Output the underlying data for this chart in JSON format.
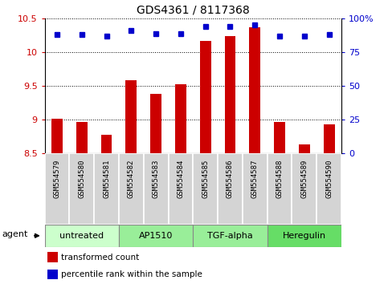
{
  "title": "GDS4361 / 8117368",
  "samples": [
    "GSM554579",
    "GSM554580",
    "GSM554581",
    "GSM554582",
    "GSM554583",
    "GSM554584",
    "GSM554585",
    "GSM554586",
    "GSM554587",
    "GSM554588",
    "GSM554589",
    "GSM554590"
  ],
  "transformed_counts": [
    9.01,
    8.97,
    8.78,
    9.58,
    9.38,
    9.52,
    10.17,
    10.24,
    10.37,
    8.97,
    8.63,
    8.93
  ],
  "percentile_ranks": [
    88,
    88,
    87,
    91,
    89,
    89,
    94,
    94,
    95,
    87,
    87,
    88
  ],
  "ylim_left": [
    8.5,
    10.5
  ],
  "ylim_right": [
    0,
    100
  ],
  "yticks_left": [
    8.5,
    9.0,
    9.5,
    10.0,
    10.5
  ],
  "ytick_labels_left": [
    "8.5",
    "9",
    "9.5",
    "10",
    "10.5"
  ],
  "yticks_right": [
    0,
    25,
    50,
    75,
    100
  ],
  "ytick_labels_right": [
    "0",
    "25",
    "50",
    "75",
    "100%"
  ],
  "bar_color": "#cc0000",
  "dot_color": "#0000cc",
  "bar_bottom": 8.5,
  "groups": [
    {
      "label": "untreated",
      "start": 0,
      "end": 3,
      "color": "#ccffcc"
    },
    {
      "label": "AP1510",
      "start": 3,
      "end": 6,
      "color": "#99ee99"
    },
    {
      "label": "TGF-alpha",
      "start": 6,
      "end": 9,
      "color": "#99ee99"
    },
    {
      "label": "Heregulin",
      "start": 9,
      "end": 12,
      "color": "#66dd66"
    }
  ],
  "legend_red_label": "transformed count",
  "legend_blue_label": "percentile rank within the sample",
  "agent_label": "agent",
  "title_fontsize": 10,
  "tick_fontsize": 8,
  "sample_fontsize": 6.5,
  "group_fontsize": 8,
  "legend_fontsize": 7.5,
  "sample_cell_color": "#d4d4d4",
  "sample_cell_edge": "#ffffff",
  "group_border_color": "#888888",
  "bar_width": 0.45
}
